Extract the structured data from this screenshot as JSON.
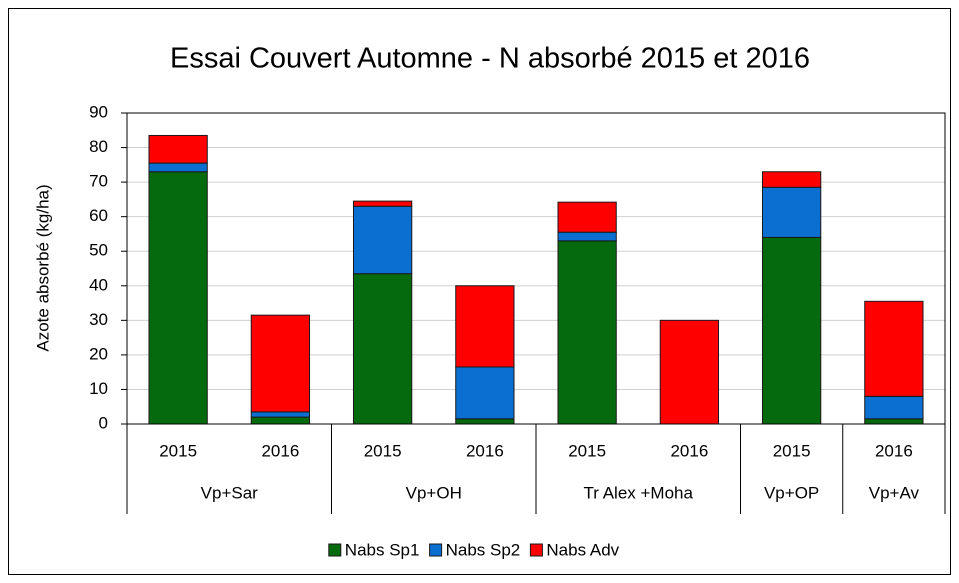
{
  "chart_data": {
    "type": "stacked_bar",
    "title": "Essai Couvert Automne - N absorbé 2015 et 2016",
    "y_label": "Azote absorbé (kg/ha)",
    "groups": [
      {
        "name": "Vp+Sar",
        "categories": [
          "2015",
          "2016"
        ]
      },
      {
        "name": "Vp+OH",
        "categories": [
          "2015",
          "2016"
        ]
      },
      {
        "name": "Tr Alex +Moha",
        "categories": [
          "2015",
          "2016"
        ]
      },
      {
        "name": "Vp+OP",
        "categories": [
          "2015"
        ]
      },
      {
        "name": "Vp+Av",
        "categories": [
          "2016"
        ]
      }
    ],
    "series": [
      {
        "name": "Nabs Sp1",
        "color": "#056a0e",
        "values": [
          73,
          2,
          43.5,
          1.5,
          53,
          0,
          54,
          1.5
        ]
      },
      {
        "name": "Nabs Sp2",
        "color": "#0a6fd0",
        "values": [
          2.5,
          1.5,
          19.5,
          15,
          2.5,
          0,
          14.5,
          6.5
        ]
      },
      {
        "name": "Nabs Adv",
        "color": "#ff0000",
        "values": [
          8,
          28,
          1.5,
          23.5,
          8.7,
          30,
          4.5,
          27.5
        ]
      }
    ],
    "ylim": [
      0,
      90
    ],
    "yticks": [
      0,
      10,
      20,
      30,
      40,
      50,
      60,
      70,
      80,
      90
    ],
    "grid": true,
    "legend": "bottom"
  }
}
